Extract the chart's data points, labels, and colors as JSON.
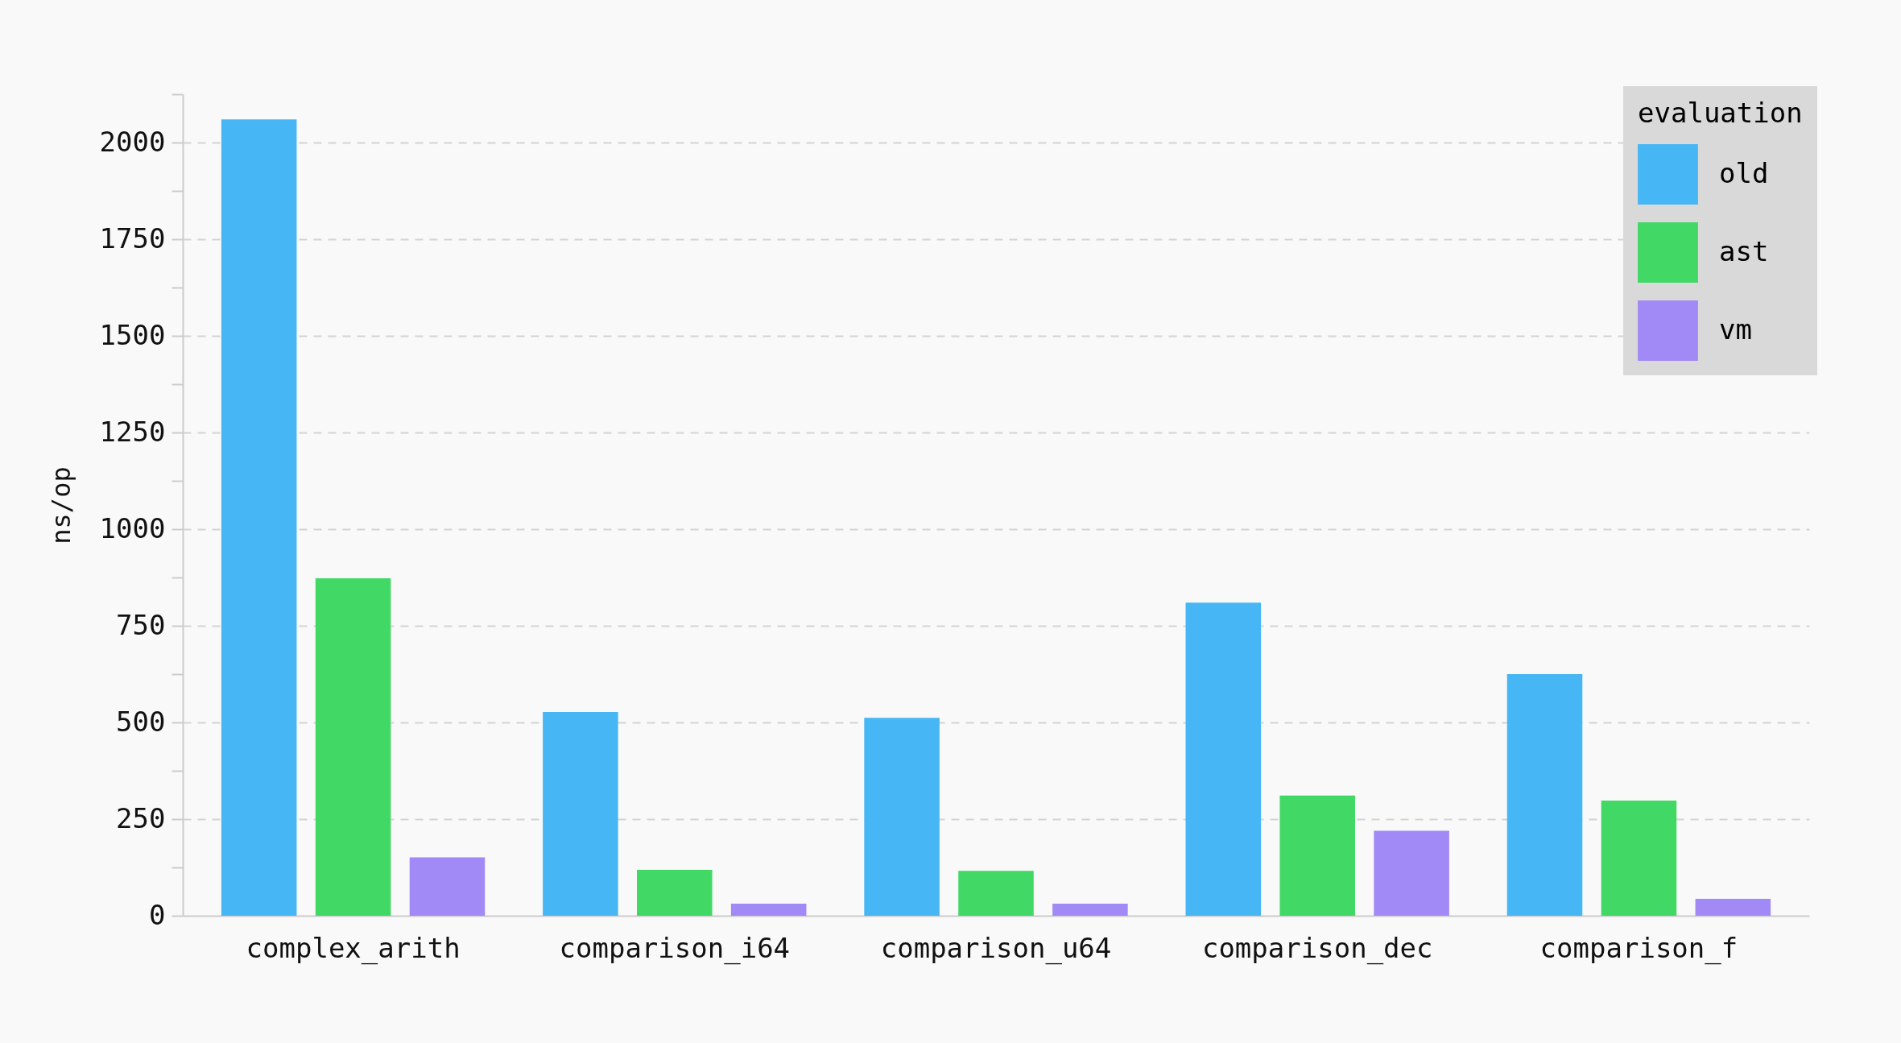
{
  "chart_data": {
    "type": "bar",
    "ylabel": "ns/op",
    "legend_title": "evaluation",
    "categories": [
      "complex_arith",
      "comparison_i64",
      "comparison_u64",
      "comparison_dec",
      "comparison_f"
    ],
    "series": [
      {
        "name": "old",
        "color": "#47b6f5",
        "values": [
          2060,
          527,
          512,
          810,
          625
        ]
      },
      {
        "name": "ast",
        "color": "#41d866",
        "values": [
          873,
          119,
          116,
          311,
          298
        ]
      },
      {
        "name": "vm",
        "color": "#a18af5",
        "values": [
          151,
          31,
          31,
          220,
          44
        ]
      }
    ],
    "ylim": [
      0,
      2125
    ],
    "yticks": [
      0,
      {
        "value": 125,
        "label": null
      },
      250,
      {
        "value": 375,
        "label": null
      },
      500,
      {
        "value": 625,
        "label": null
      },
      750,
      {
        "value": 875,
        "label": null
      },
      1000,
      {
        "value": 1125,
        "label": null
      },
      1250,
      {
        "value": 1375,
        "label": null
      },
      1500,
      {
        "value": 1625,
        "label": null
      },
      1750,
      {
        "value": 1875,
        "label": null
      },
      2000,
      {
        "value": 2125,
        "label": null
      }
    ],
    "grid": "y",
    "legend": "top right"
  }
}
